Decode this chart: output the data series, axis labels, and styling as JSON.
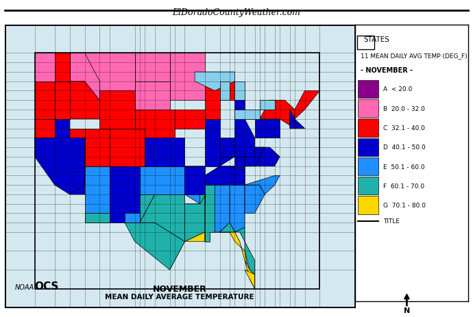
{
  "title_top": "ElDoradoCountyWeather.com",
  "map_title_line1": "NOVEMBER",
  "map_title_line2": "MEAN DAILY AVERAGE TEMPERATURE",
  "legend_title1": "STATES",
  "legend_title2": "11 MEAN DAILY AVG TEMP (DEG_F)",
  "legend_subtitle": "- NOVEMBER -",
  "legend_entries": [
    {
      "label": "A  < 20.0",
      "color": "#8B008B"
    },
    {
      "label": "B  20.0 - 32.0",
      "color": "#FF69B4"
    },
    {
      "label": "C  32.1 - 40.0",
      "color": "#FF0000"
    },
    {
      "label": "D  40.1 - 50.0",
      "color": "#0000CD"
    },
    {
      "label": "E  50.1 - 60.0",
      "color": "#00BFFF"
    },
    {
      "label": "F  60.1 - 70.0",
      "color": "#00CED1"
    },
    {
      "label": "G  70.1 - 80.0",
      "color": "#FFD700"
    }
  ],
  "legend_title_entry": {
    "label": "TITLE",
    "color": "#555555"
  },
  "bg_color": "#FFFFFF",
  "map_bg": "#FFFFFF",
  "border_color": "#000000",
  "font_size_top": 10,
  "font_size_legend": 8
}
